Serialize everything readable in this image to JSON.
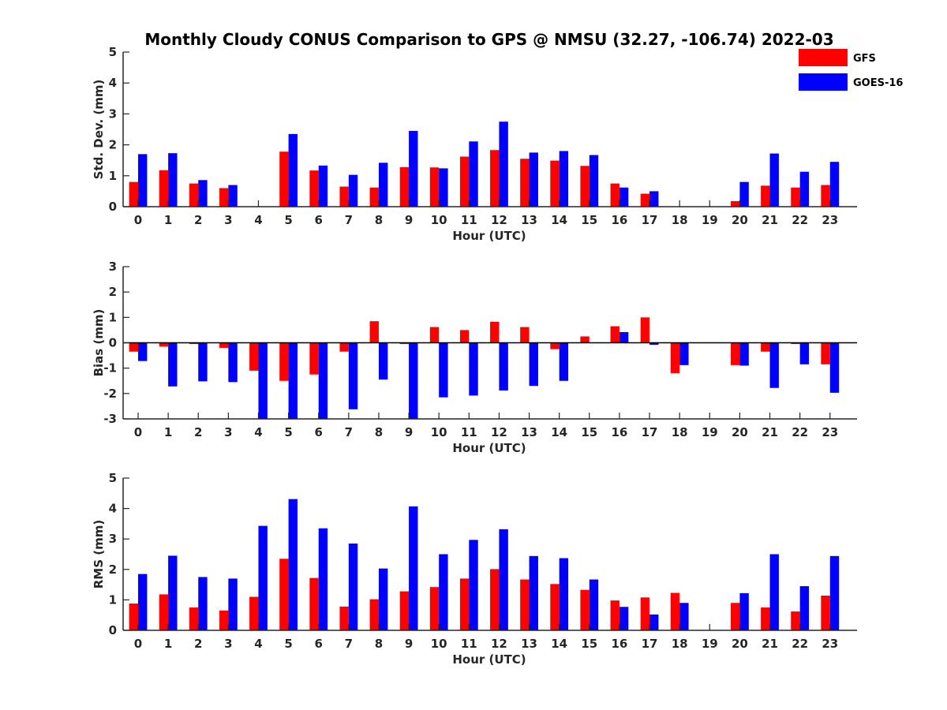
{
  "chart_data": {
    "type": "bar",
    "title": "Monthly Cloudy CONUS Comparison to GPS @ NMSU (32.27, -106.74) 2022-03",
    "legend": {
      "placement": "top-right",
      "entries": [
        {
          "name": "GFS",
          "color": "#ff0000"
        },
        {
          "name": "GOES-16",
          "color": "#0000ff"
        }
      ]
    },
    "categories": [
      "0",
      "1",
      "2",
      "3",
      "4",
      "5",
      "6",
      "7",
      "8",
      "9",
      "10",
      "11",
      "12",
      "13",
      "14",
      "15",
      "16",
      "17",
      "18",
      "19",
      "20",
      "21",
      "22",
      "23"
    ],
    "panels": [
      {
        "id": "std",
        "xlabel": "Hour (UTC)",
        "ylabel": "Std. Dev. (mm)",
        "ylim": [
          0,
          5
        ],
        "yticks": [
          0,
          1,
          2,
          3,
          4,
          5
        ],
        "series": [
          {
            "name": "GFS",
            "color": "#ff0000",
            "values": [
              0.8,
              1.18,
              0.75,
              0.6,
              null,
              1.78,
              1.17,
              0.65,
              0.62,
              1.28,
              1.27,
              1.62,
              1.83,
              1.55,
              1.49,
              1.32,
              0.75,
              0.42,
              null,
              null,
              0.18,
              0.68,
              0.62,
              0.7
            ]
          },
          {
            "name": "GOES-16",
            "color": "#0000ff",
            "values": [
              1.7,
              1.73,
              0.86,
              0.7,
              null,
              2.35,
              1.33,
              1.03,
              1.42,
              2.45,
              1.24,
              2.11,
              2.75,
              1.75,
              1.8,
              1.67,
              0.62,
              0.5,
              null,
              null,
              0.8,
              1.72,
              1.13,
              1.45
            ]
          }
        ]
      },
      {
        "id": "bias",
        "xlabel": "Hour (UTC)",
        "ylabel": "Bias (mm)",
        "ylim": [
          -3,
          3
        ],
        "yticks": [
          -3,
          -2,
          -1,
          0,
          1,
          2,
          3
        ],
        "zero_line": true,
        "series": [
          {
            "name": "GFS",
            "color": "#ff0000",
            "values": [
              -0.35,
              -0.15,
              -0.05,
              -0.2,
              -1.1,
              -1.5,
              -1.25,
              -0.35,
              0.85,
              -0.05,
              0.62,
              0.5,
              0.83,
              0.62,
              -0.25,
              0.25,
              0.65,
              1.0,
              -1.2,
              null,
              -0.88,
              -0.35,
              -0.05,
              -0.85
            ]
          },
          {
            "name": "GOES-16",
            "color": "#0000ff",
            "values": [
              -0.72,
              -1.72,
              -1.52,
              -1.55,
              -3.0,
              -3.0,
              -3.0,
              -2.62,
              -1.45,
              -3.0,
              -2.15,
              -2.08,
              -1.88,
              -1.7,
              -1.5,
              null,
              0.42,
              -0.08,
              -0.88,
              null,
              -0.9,
              -1.78,
              -0.85,
              -1.97
            ]
          }
        ]
      },
      {
        "id": "rms",
        "xlabel": "Hour (UTC)",
        "ylabel": "RMS (mm)",
        "ylim": [
          0,
          5
        ],
        "yticks": [
          0,
          1,
          2,
          3,
          4,
          5
        ],
        "series": [
          {
            "name": "GFS",
            "color": "#ff0000",
            "values": [
              0.88,
              1.18,
              0.75,
              0.65,
              1.1,
              2.35,
              1.72,
              0.78,
              1.02,
              1.28,
              1.42,
              1.7,
              2.01,
              1.67,
              1.52,
              1.33,
              0.98,
              1.08,
              1.23,
              null,
              0.9,
              0.75,
              0.62,
              1.14
            ]
          },
          {
            "name": "GOES-16",
            "color": "#0000ff",
            "values": [
              1.85,
              2.45,
              1.75,
              1.7,
              3.43,
              4.31,
              3.35,
              2.85,
              2.03,
              4.07,
              2.5,
              2.97,
              3.32,
              2.44,
              2.37,
              1.67,
              0.77,
              0.52,
              0.9,
              null,
              1.22,
              2.5,
              1.45,
              2.44
            ]
          }
        ]
      }
    ]
  }
}
